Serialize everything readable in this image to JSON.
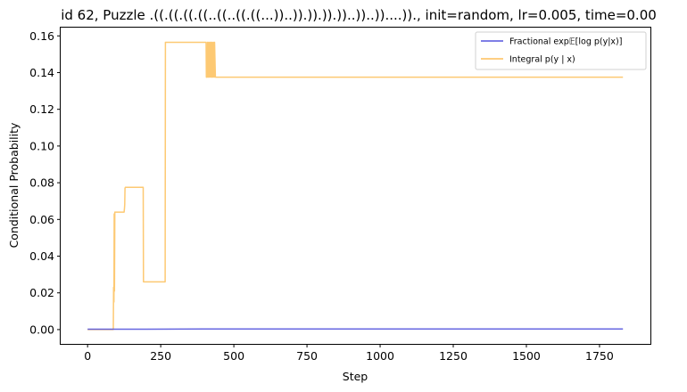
{
  "chart_data": {
    "type": "line",
    "title": "id 62, Puzzle .((.((.((.((..((..((.((...))..)).)).)).))..))..))....))., init=random, lr=0.005, time=0.00",
    "xlabel": "Step",
    "ylabel": "Conditional Probability",
    "xlim": [
      -92,
      1924
    ],
    "ylim": [
      -0.0078,
      0.1645
    ],
    "xticks": [
      0,
      250,
      500,
      750,
      1000,
      1250,
      1500,
      1750
    ],
    "yticks": [
      0.0,
      0.02,
      0.04,
      0.06,
      0.08,
      0.1,
      0.12,
      0.14,
      0.16
    ],
    "ytick_labels": [
      "0.00",
      "0.02",
      "0.04",
      "0.06",
      "0.08",
      "0.10",
      "0.12",
      "0.14",
      "0.16"
    ],
    "grid": false,
    "legend_position": "top-right",
    "series": [
      {
        "name": "Fractional exp𝔼[log p(y|x)]",
        "color": "#5555dd",
        "x": [
          0,
          100,
          200,
          400,
          600,
          800,
          1000,
          1200,
          1400,
          1600,
          1830
        ],
        "y": [
          0.0002,
          0.0002,
          0.0002,
          0.0003,
          0.0003,
          0.0003,
          0.0003,
          0.0003,
          0.0003,
          0.0003,
          0.0003
        ]
      },
      {
        "name": "Integral p(y | x)",
        "color": "#fdbf5a",
        "x": [
          0,
          88,
          89,
          90,
          91,
          92,
          93,
          94,
          95,
          96,
          125,
          126,
          127,
          128,
          129,
          190,
          191,
          265,
          266,
          405,
          406,
          409,
          410,
          413,
          414,
          417,
          418,
          421,
          422,
          425,
          426,
          429,
          430,
          433,
          434,
          437,
          438,
          1830
        ],
        "y": [
          0.0,
          0.0,
          0.023,
          0.015,
          0.063,
          0.021,
          0.064,
          0.064,
          0.064,
          0.064,
          0.064,
          0.066,
          0.068,
          0.077,
          0.0775,
          0.0775,
          0.026,
          0.026,
          0.1565,
          0.1565,
          0.1375,
          0.1375,
          0.1565,
          0.1375,
          0.1565,
          0.1375,
          0.1565,
          0.1375,
          0.1565,
          0.1375,
          0.1565,
          0.1375,
          0.1565,
          0.1375,
          0.1565,
          0.1375,
          0.1375,
          0.1375
        ]
      }
    ]
  }
}
